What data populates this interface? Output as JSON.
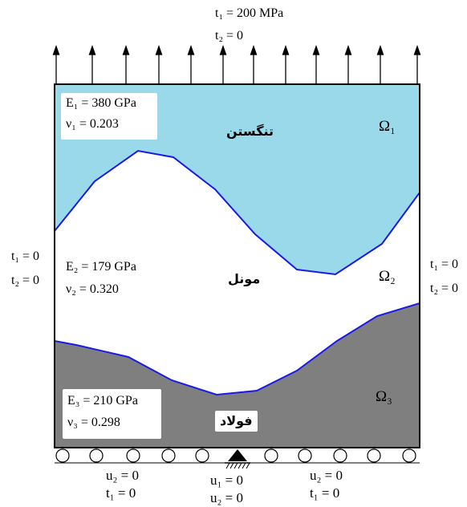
{
  "top_load": {
    "t1": "t₁ = 200 MPa",
    "t2": "t₂ = 0"
  },
  "left_bc": {
    "t1": "t₁ = 0",
    "t2": "t₂ = 0"
  },
  "right_bc": {
    "t1": "t₁ = 0",
    "t2": "t₂ = 0"
  },
  "bottom_bc": {
    "left": {
      "u2": "u₂ = 0",
      "t1": "t₁ = 0"
    },
    "center": {
      "u1": "u₁ = 0",
      "u2": "u₂ = 0"
    },
    "right": {
      "u2": "u₂ = 0",
      "t1": "t₁ = 0"
    }
  },
  "materials": {
    "tungsten": {
      "name": "تنگستن",
      "E": "E₁ = 380  GPa",
      "nu": "ν₁ = 0.203",
      "region": "Ω₁",
      "color": "#99d9ea"
    },
    "monel": {
      "name": "مونل",
      "E": "E₂ = 179  GPa",
      "nu": "ν₂ = 0.320",
      "region": "Ω₂",
      "color": "#ffffff"
    },
    "steel": {
      "name": "فولاد",
      "E": "E₃ = 210 GPa",
      "nu": "ν₃ = 0.298",
      "region": "Ω₃",
      "color": "#7f7f7f"
    }
  },
  "colors": {
    "interface": "#1a1ae6",
    "border": "#000000"
  },
  "icons": {
    "arrow": "up-arrow-icon",
    "roller": "roller-support-icon",
    "pin": "pin-support-icon"
  }
}
